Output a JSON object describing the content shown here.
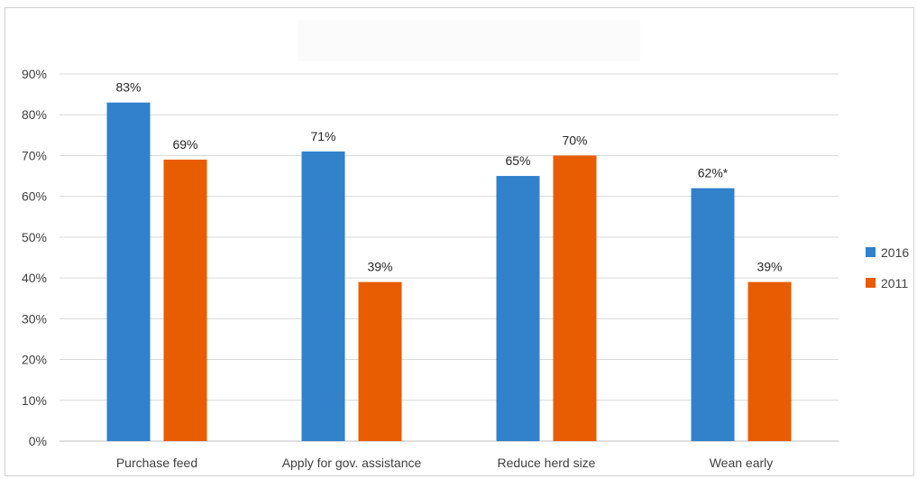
{
  "chart_data": {
    "type": "bar",
    "title": "",
    "xlabel": "",
    "ylabel": "",
    "categories": [
      "Purchase feed",
      "Apply for gov. assistance",
      "Reduce herd size",
      "Wean early"
    ],
    "series": [
      {
        "name": "2016",
        "color": "#3181CB",
        "values": [
          83,
          71,
          65,
          62
        ],
        "labels": [
          "83%",
          "71%",
          "65%",
          "62%*"
        ]
      },
      {
        "name": "2011",
        "color": "#E85C02",
        "values": [
          69,
          39,
          70,
          39
        ],
        "labels": [
          "69%",
          "39%",
          "70%",
          "39%"
        ]
      }
    ],
    "ylim": [
      0,
      90
    ],
    "yticks": [
      0,
      10,
      20,
      30,
      40,
      50,
      60,
      70,
      80,
      90
    ],
    "ytick_labels": [
      "0%",
      "10%",
      "20%",
      "30%",
      "40%",
      "50%",
      "60%",
      "70%",
      "80%",
      "90%"
    ],
    "grid": true,
    "grid_color": "#D9D9D9",
    "legend_position": "right"
  }
}
